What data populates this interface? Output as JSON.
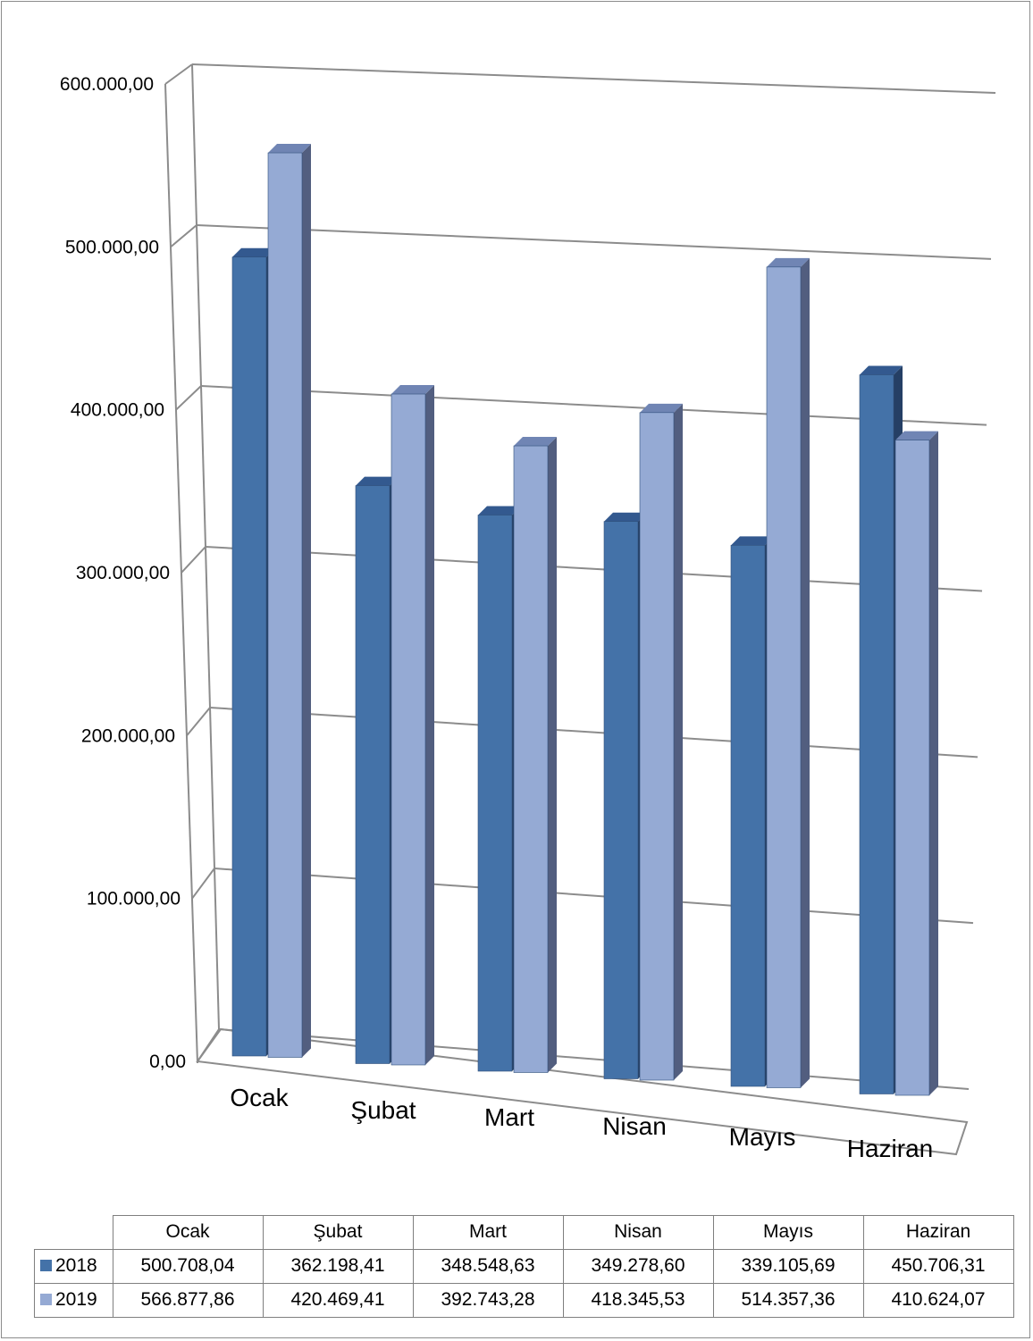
{
  "chart_data": {
    "type": "bar",
    "categories": [
      "Ocak",
      "Şubat",
      "Mart",
      "Nisan",
      "Mayıs",
      "Haziran"
    ],
    "series": [
      {
        "name": "2018",
        "color": "#4472A8",
        "values": [
          500708.04,
          362198.41,
          348548.63,
          349278.6,
          339105.69,
          450706.31
        ],
        "labels": [
          "500.708,04",
          "362.198,41",
          "348.548,63",
          "349.278,60",
          "339.105,69",
          "450.706,31"
        ]
      },
      {
        "name": "2019",
        "color": "#95AAD4",
        "values": [
          566877.86,
          420469.41,
          392743.28,
          418345.53,
          514357.36,
          410624.07
        ],
        "labels": [
          "566.877,86",
          "420.469,41",
          "392.743,28",
          "418.345,53",
          "514.357,36",
          "410.624,07"
        ]
      }
    ],
    "ylim": [
      0,
      600000
    ],
    "yticks": [
      {
        "value": 0,
        "label": "0,00"
      },
      {
        "value": 100000,
        "label": "100.000,00"
      },
      {
        "value": 200000,
        "label": "200.000,00"
      },
      {
        "value": 300000,
        "label": "300.000,00"
      },
      {
        "value": 400000,
        "label": "400.000,00"
      },
      {
        "value": 500000,
        "label": "500.000,00"
      },
      {
        "value": 600000,
        "label": "600.000,00"
      }
    ],
    "grid": true,
    "style": "3d-clustered-column",
    "legend": "data-table-below"
  }
}
